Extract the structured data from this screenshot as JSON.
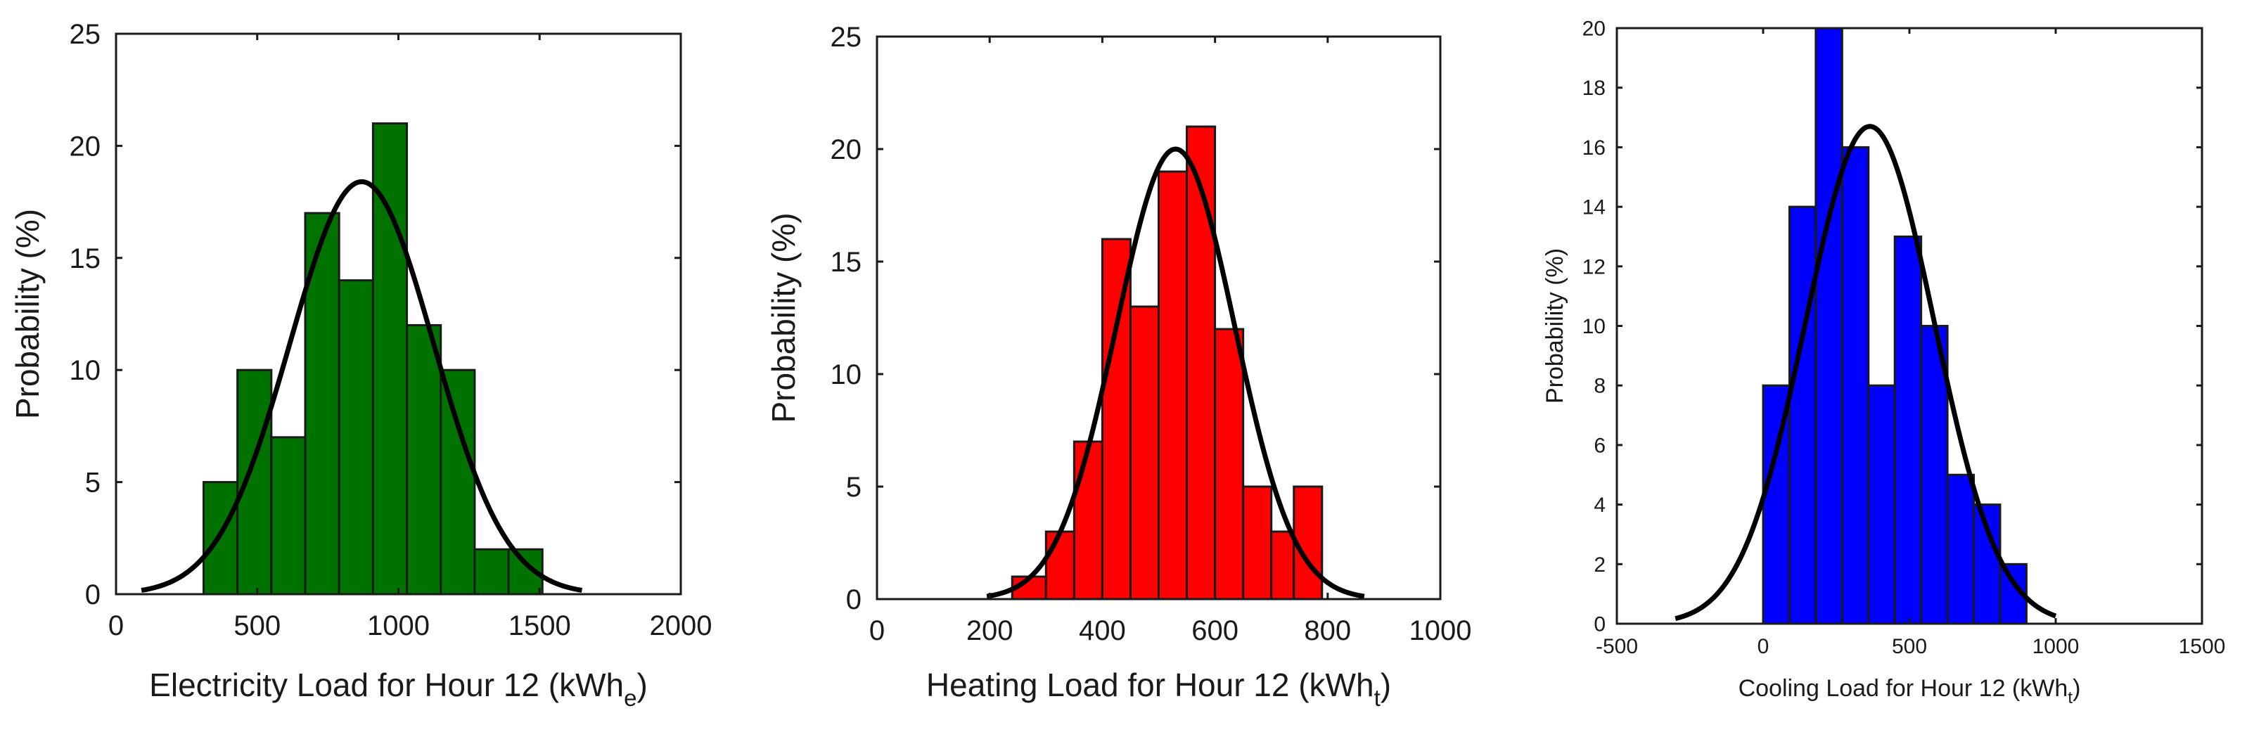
{
  "chart_data": [
    {
      "type": "bar",
      "subtype": "histogram-with-normal-fit",
      "xlabel": "Electricity Load for Hour 12 (kWh",
      "xlabel_subscript": "e",
      "xlabel_suffix": ")",
      "ylabel": "Probability (%)",
      "xlim": [
        0,
        2000
      ],
      "ylim": [
        0,
        25
      ],
      "xticks": [
        0,
        500,
        1000,
        1500,
        2000
      ],
      "yticks": [
        0,
        5,
        10,
        15,
        20,
        25
      ],
      "bar_color": "#007200",
      "bins": [
        {
          "x0": 310,
          "x1": 430,
          "value": 5
        },
        {
          "x0": 430,
          "x1": 550,
          "value": 10
        },
        {
          "x0": 550,
          "x1": 670,
          "value": 7
        },
        {
          "x0": 670,
          "x1": 790,
          "value": 17
        },
        {
          "x0": 790,
          "x1": 910,
          "value": 14
        },
        {
          "x0": 910,
          "x1": 1030,
          "value": 21
        },
        {
          "x0": 1030,
          "x1": 1150,
          "value": 12
        },
        {
          "x0": 1150,
          "x1": 1270,
          "value": 10
        },
        {
          "x0": 1270,
          "x1": 1390,
          "value": 2
        },
        {
          "x0": 1390,
          "x1": 1510,
          "value": 2
        }
      ],
      "fit": {
        "mean": 870,
        "sd": 255,
        "peak": 18.4,
        "x_from": 90,
        "x_to": 1650,
        "color": "#000000"
      }
    },
    {
      "type": "bar",
      "subtype": "histogram-with-normal-fit",
      "xlabel": "Heating Load for Hour 12 (kWh",
      "xlabel_subscript": "t",
      "xlabel_suffix": ")",
      "ylabel": "Probability (%)",
      "xlim": [
        0,
        1000
      ],
      "ylim": [
        0,
        25
      ],
      "xticks": [
        0,
        200,
        400,
        600,
        800,
        1000
      ],
      "yticks": [
        0,
        5,
        10,
        15,
        20,
        25
      ],
      "bar_color": "#ff0000",
      "bins": [
        {
          "x0": 240,
          "x1": 300,
          "value": 1
        },
        {
          "x0": 300,
          "x1": 350,
          "value": 3
        },
        {
          "x0": 350,
          "x1": 400,
          "value": 7
        },
        {
          "x0": 400,
          "x1": 450,
          "value": 16
        },
        {
          "x0": 450,
          "x1": 500,
          "value": 13
        },
        {
          "x0": 500,
          "x1": 550,
          "value": 19
        },
        {
          "x0": 550,
          "x1": 600,
          "value": 21
        },
        {
          "x0": 600,
          "x1": 650,
          "value": 12
        },
        {
          "x0": 650,
          "x1": 700,
          "value": 5
        },
        {
          "x0": 700,
          "x1": 740,
          "value": 3
        },
        {
          "x0": 740,
          "x1": 790,
          "value": 5
        }
      ],
      "fit": {
        "mean": 530,
        "sd": 105,
        "peak": 20,
        "x_from": 195,
        "x_to": 865,
        "color": "#000000"
      }
    },
    {
      "type": "bar",
      "subtype": "histogram-with-normal-fit",
      "xlabel": "Cooling Load for Hour 12 (kWh",
      "xlabel_subscript": "t",
      "xlabel_suffix": ")",
      "ylabel": "Probability (%)",
      "xlim": [
        -500,
        1500
      ],
      "ylim": [
        0,
        20
      ],
      "xticks": [
        -500,
        0,
        500,
        1000,
        1500
      ],
      "yticks": [
        0,
        2,
        4,
        6,
        8,
        10,
        12,
        14,
        16,
        18,
        20
      ],
      "bar_color": "#0000ff",
      "bins": [
        {
          "x0": 0,
          "x1": 90,
          "value": 8
        },
        {
          "x0": 90,
          "x1": 180,
          "value": 14
        },
        {
          "x0": 180,
          "x1": 270,
          "value": 20
        },
        {
          "x0": 270,
          "x1": 360,
          "value": 16
        },
        {
          "x0": 360,
          "x1": 450,
          "value": 8
        },
        {
          "x0": 450,
          "x1": 540,
          "value": 13
        },
        {
          "x0": 540,
          "x1": 630,
          "value": 10
        },
        {
          "x0": 630,
          "x1": 720,
          "value": 5
        },
        {
          "x0": 720,
          "x1": 810,
          "value": 4
        },
        {
          "x0": 810,
          "x1": 900,
          "value": 2
        }
      ],
      "fit": {
        "mean": 365,
        "sd": 220,
        "peak": 16.7,
        "x_from": -300,
        "x_to": 1000,
        "color": "#000000"
      }
    }
  ]
}
